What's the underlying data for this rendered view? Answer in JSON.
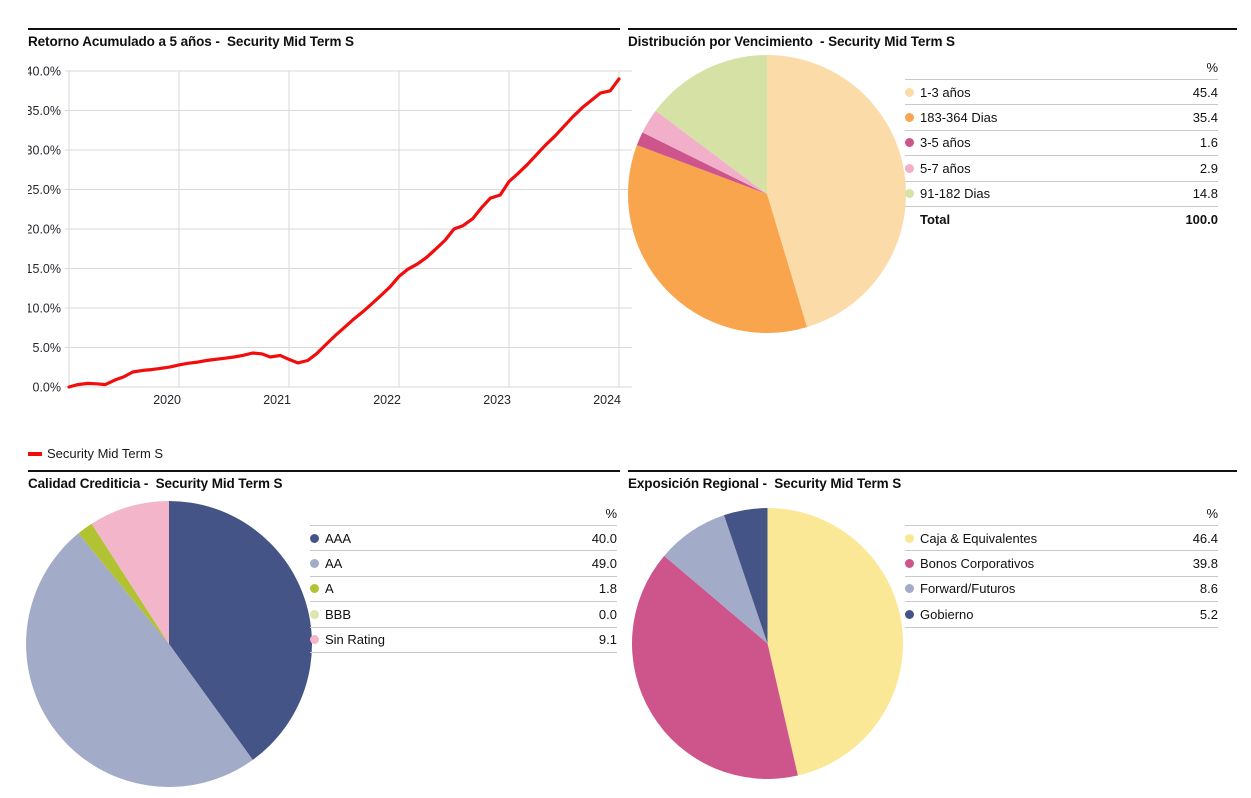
{
  "report": {
    "fund_name": "Security Mid Term S"
  },
  "colors": {
    "line_red": "#F20D0D",
    "panel_border": "#111111",
    "gridline": "#D9D9D9",
    "table_separator": "#C9C9C9",
    "axis_text": "#26262e",
    "title_text": "#0f0f0f",
    "navy": "#455486",
    "lavender": "#A2ABC7",
    "olive": "#B1C233",
    "pale_green": "#DCE6AE",
    "pink": "#F2B5CA",
    "peach": "#FBDCA8",
    "orange": "#F8A54E",
    "magenta": "#CE558C",
    "light_pink": "#F1AFCA",
    "light_green": "#D6E2A5",
    "yellow": "#FAE897"
  },
  "chart_data": [
    {
      "id": "retorno",
      "type": "line",
      "title": "Retorno Acumulado a 5 años -  Security Mid Term S",
      "xlabel": "",
      "ylabel": "",
      "ylim": [
        0,
        40
      ],
      "xlim": [
        2019,
        2024.12
      ],
      "grid": true,
      "legend_position": "below-left",
      "legend": {
        "label": "Security Mid Term S"
      },
      "yticks": [
        {
          "value": 40,
          "label": "40.0%"
        },
        {
          "value": 35,
          "label": "35.0%"
        },
        {
          "value": 30,
          "label": "30.0%"
        },
        {
          "value": 25,
          "label": "25.0%"
        },
        {
          "value": 20,
          "label": "20.0%"
        },
        {
          "value": 15,
          "label": "15.0%"
        },
        {
          "value": 10,
          "label": "10.0%"
        },
        {
          "value": 5,
          "label": "5.0%"
        },
        {
          "value": 0,
          "label": "0.0%"
        }
      ],
      "xticks": [
        {
          "value": 2020,
          "label": "2020"
        },
        {
          "value": 2021,
          "label": "2021"
        },
        {
          "value": 2022,
          "label": "2022"
        },
        {
          "value": 2023,
          "label": "2023"
        },
        {
          "value": 2024,
          "label": "2024"
        }
      ],
      "series": [
        {
          "name": "Security Mid Term S",
          "color": "#F20D0D",
          "x": [
            2019.0,
            2019.08,
            2019.17,
            2019.25,
            2019.33,
            2019.42,
            2019.5,
            2019.58,
            2019.67,
            2019.75,
            2019.83,
            2019.92,
            2020.0,
            2020.08,
            2020.17,
            2020.25,
            2020.33,
            2020.42,
            2020.5,
            2020.58,
            2020.67,
            2020.75,
            2020.83,
            2020.92,
            2021.0,
            2021.08,
            2021.17,
            2021.25,
            2021.33,
            2021.42,
            2021.5,
            2021.58,
            2021.67,
            2021.75,
            2021.83,
            2021.92,
            2022.0,
            2022.08,
            2022.17,
            2022.25,
            2022.33,
            2022.42,
            2022.5,
            2022.58,
            2022.67,
            2022.75,
            2022.83,
            2022.92,
            2023.0,
            2023.08,
            2023.17,
            2023.25,
            2023.33,
            2023.42,
            2023.5,
            2023.58,
            2023.67,
            2023.75,
            2023.83,
            2023.92,
            2024.0
          ],
          "y": [
            0.0,
            0.3,
            0.45,
            0.4,
            0.3,
            0.9,
            1.3,
            1.9,
            2.1,
            2.2,
            2.35,
            2.55,
            2.8,
            3.0,
            3.15,
            3.35,
            3.5,
            3.65,
            3.8,
            4.0,
            4.3,
            4.2,
            3.8,
            4.0,
            3.5,
            3.05,
            3.35,
            4.2,
            5.3,
            6.5,
            7.5,
            8.5,
            9.5,
            10.5,
            11.5,
            12.7,
            14.0,
            14.9,
            15.6,
            16.4,
            17.4,
            18.6,
            20.0,
            20.4,
            21.3,
            22.7,
            23.9,
            24.3,
            26.0,
            27.0,
            28.2,
            29.4,
            30.6,
            31.8,
            33.0,
            34.2,
            35.4,
            36.3,
            37.2,
            37.5,
            39.0
          ]
        }
      ]
    },
    {
      "id": "vencimiento",
      "type": "pie",
      "title": "Distribución por Vencimiento  - Security Mid Term S",
      "start_angle_deg": 0,
      "clockwise": true,
      "labels": [
        "1-3 años",
        "183-364 Dias",
        "3-5 años",
        "5-7 años",
        "91-182 Dias"
      ],
      "values": [
        45.4,
        35.4,
        1.6,
        2.9,
        14.8
      ],
      "colors": [
        "#FBDCA8",
        "#F8A54E",
        "#CE558C",
        "#F1AFCA",
        "#D6E2A5"
      ],
      "legend_table": {
        "header": "%",
        "total_label": "Total",
        "total_value": 100.0
      }
    },
    {
      "id": "calidad",
      "type": "pie",
      "title": "Calidad Crediticia -  Security Mid Term S",
      "start_angle_deg": 0,
      "clockwise": true,
      "labels": [
        "AAA",
        "AA",
        "A",
        "BBB",
        "Sin Rating"
      ],
      "values": [
        40.0,
        49.0,
        1.8,
        0.0,
        9.1
      ],
      "colors": [
        "#455486",
        "#A2ABC7",
        "#B1C233",
        "#DCE6AE",
        "#F2B5CA"
      ],
      "legend_table": {
        "header": "%"
      }
    },
    {
      "id": "exposicion",
      "type": "pie",
      "title": "Exposición Regional -  Security Mid Term S",
      "start_angle_deg": 0,
      "clockwise": true,
      "labels": [
        "Caja & Equivalentes",
        "Bonos Corporativos",
        "Forward/Futuros",
        "Gobierno"
      ],
      "values": [
        46.4,
        39.8,
        8.6,
        5.2
      ],
      "colors": [
        "#FAE897",
        "#CE558C",
        "#A2ABC7",
        "#455486"
      ],
      "legend_table": {
        "header": "%"
      }
    }
  ]
}
